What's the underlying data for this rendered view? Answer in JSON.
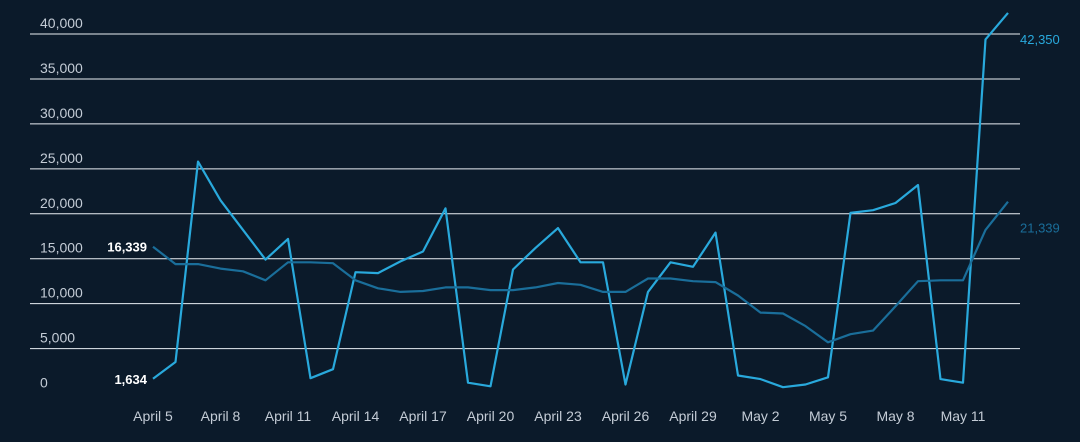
{
  "chart_data": {
    "type": "line",
    "title": "",
    "xlabel": "",
    "ylabel": "",
    "ylim": [
      0,
      40000
    ],
    "y_ticks": [
      0,
      5000,
      10000,
      15000,
      20000,
      25000,
      30000,
      35000,
      40000
    ],
    "y_tick_labels": [
      "0",
      "5,000",
      "10,000",
      "15,000",
      "20,000",
      "25,000",
      "30,000",
      "35,000",
      "40,000"
    ],
    "x_tick_labels": [
      "April 5",
      "April 8",
      "April 11",
      "April 14",
      "April 17",
      "April 20",
      "April 23",
      "April 26",
      "April 29",
      "May 2",
      "May 5",
      "May 8",
      "May 11"
    ],
    "x": [
      "April 5",
      "April 6",
      "April 7",
      "April 8",
      "April 9",
      "April 10",
      "April 11",
      "April 12",
      "April 13",
      "April 14",
      "April 15",
      "April 16",
      "April 17",
      "April 18",
      "April 19",
      "April 20",
      "April 21",
      "April 22",
      "April 23",
      "April 24",
      "April 25",
      "April 26",
      "April 27",
      "April 28",
      "April 29",
      "April 30",
      "May 1",
      "May 2",
      "May 3",
      "May 4",
      "May 5",
      "May 6",
      "May 7",
      "May 8",
      "May 9",
      "May 10",
      "May 11",
      "May 12",
      "May 13"
    ],
    "grid": true,
    "series": [
      {
        "name": "",
        "color": "#29a9dc",
        "start_label": "1,634",
        "end_label": "42,350",
        "values": [
          1634,
          3500,
          25800,
          21500,
          18200,
          14900,
          17200,
          1700,
          2700,
          13500,
          13400,
          14700,
          15800,
          20600,
          1200,
          800,
          13800,
          16200,
          18400,
          14600,
          14600,
          1000,
          11300,
          14600,
          14100,
          17900,
          2000,
          1600,
          700,
          1000,
          1800,
          20100,
          20400,
          21200,
          23200,
          1600,
          1200,
          39400,
          42350
        ]
      },
      {
        "name": "",
        "color": "#1a6e9a",
        "start_label": "16,339",
        "end_label": "21,339",
        "values": [
          16339,
          14400,
          14400,
          13900,
          13600,
          12600,
          14600,
          14600,
          14500,
          12600,
          11700,
          11300,
          11400,
          11800,
          11800,
          11500,
          11500,
          11800,
          12300,
          12100,
          11300,
          11300,
          12800,
          12800,
          12500,
          12400,
          10900,
          9000,
          8900,
          7500,
          5700,
          6600,
          7000,
          9700,
          12500,
          12600,
          12600,
          18200,
          21339
        ]
      }
    ]
  }
}
